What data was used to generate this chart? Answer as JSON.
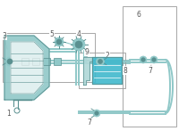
{
  "bg_color": "#ffffff",
  "line_color": "#90c8c8",
  "dark_line": "#5a9090",
  "mid_line": "#70aaaa",
  "highlight_color": "#40b8cc",
  "box_edge": "#999999",
  "label_color": "#555555",
  "figsize": [
    2.0,
    1.47
  ],
  "dpi": 100
}
